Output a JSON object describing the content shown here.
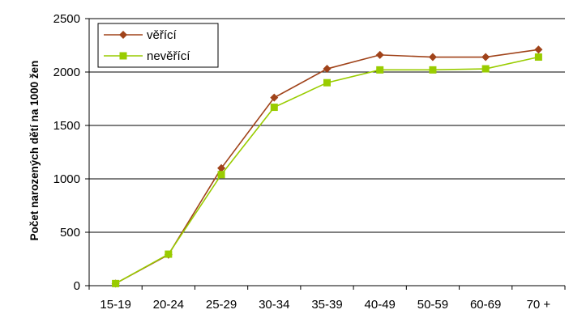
{
  "chart_data": {
    "type": "line",
    "title": "",
    "xlabel": "",
    "ylabel": "Počet narozených dětí na 1000 žen",
    "categories": [
      "15-19",
      "20-24",
      "25-29",
      "30-34",
      "35-39",
      "40-49",
      "50-59",
      "60-69",
      "70 +"
    ],
    "ylim": [
      0,
      2500
    ],
    "yticks": [
      0,
      500,
      1000,
      1500,
      2000,
      2500
    ],
    "grid": true,
    "legend_position": "top-left",
    "series": [
      {
        "name": "věřící",
        "color": "#a0431a",
        "marker": "diamond",
        "values": [
          20,
          290,
          1100,
          1760,
          2030,
          2160,
          2140,
          2140,
          2210
        ]
      },
      {
        "name": "nevěřící",
        "color": "#99cc00",
        "marker": "square",
        "values": [
          20,
          295,
          1040,
          1670,
          1900,
          2020,
          2020,
          2030,
          2140
        ]
      }
    ]
  }
}
